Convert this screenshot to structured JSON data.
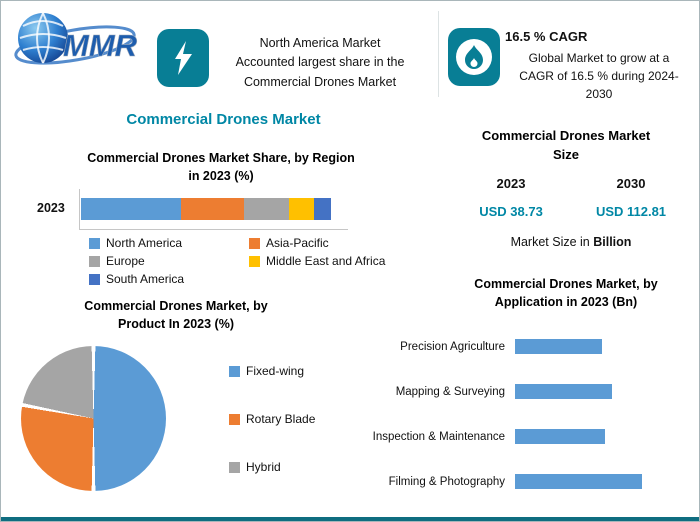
{
  "colors": {
    "teal_badge": "#087E95",
    "accent_text": "#0087A5",
    "series_blue": "#5B9BD5",
    "series_orange": "#ED7D31",
    "series_gray": "#A5A5A5",
    "series_yellow": "#FFC000",
    "series_dark_blue": "#4472C4",
    "bottom_bar": "#0f6d80"
  },
  "header": {
    "logo_text": "MMR",
    "highlight_left": "North America Market\nAccounted largest share in the\nCommercial Drones Market",
    "cagr_title": "16.5 % CAGR",
    "cagr_body": "Global Market to grow at a\nCAGR of 16.5 % during 2024-\n2030"
  },
  "main_title": "Commercial Drones Market",
  "market_size": {
    "title": "Commercial Drones Market\nSize",
    "years": [
      "2023",
      "2030"
    ],
    "values": [
      "USD 38.73",
      "USD 112.81"
    ],
    "note_prefix": "Market Size in ",
    "note_unit": "Billion"
  },
  "chart_data": [
    {
      "id": "region_share",
      "type": "bar",
      "subtype": "stacked-horizontal",
      "title": "Commercial Drones Market Share, by Region\nin 2023 (%)",
      "categories": [
        "2023"
      ],
      "series": [
        {
          "name": "North America",
          "values": [
            40
          ],
          "color": "#5B9BD5"
        },
        {
          "name": "Asia-Pacific",
          "values": [
            25
          ],
          "color": "#ED7D31"
        },
        {
          "name": "Europe",
          "values": [
            18
          ],
          "color": "#A5A5A5"
        },
        {
          "name": "Middle East and Africa",
          "values": [
            10
          ],
          "color": "#FFC000"
        },
        {
          "name": "South America",
          "values": [
            7
          ],
          "color": "#4472C4"
        }
      ],
      "xlim": [
        0,
        100
      ],
      "legend_position": "bottom",
      "grid": false
    },
    {
      "id": "product_share",
      "type": "pie",
      "title": "Commercial Drones Market, by\nProduct In 2023 (%)",
      "labels": [
        "Fixed-wing",
        "Rotary Blade",
        "Hybrid"
      ],
      "values": [
        50,
        28,
        22
      ],
      "colors": [
        "#5B9BD5",
        "#ED7D31",
        "#A5A5A5"
      ],
      "legend_position": "right"
    },
    {
      "id": "application_size",
      "type": "bar",
      "subtype": "horizontal",
      "title": "Commercial Drones Market, by\nApplication in 2023 (Bn)",
      "categories": [
        "Precision Agriculture",
        "Mapping & Surveying",
        "Inspection & Maintenance",
        "Filming & Photography"
      ],
      "values": [
        7.0,
        7.8,
        7.2,
        10.2
      ],
      "color": "#5B9BD5",
      "xlim": [
        0,
        11
      ],
      "grid": false,
      "legend_position": "none"
    }
  ]
}
